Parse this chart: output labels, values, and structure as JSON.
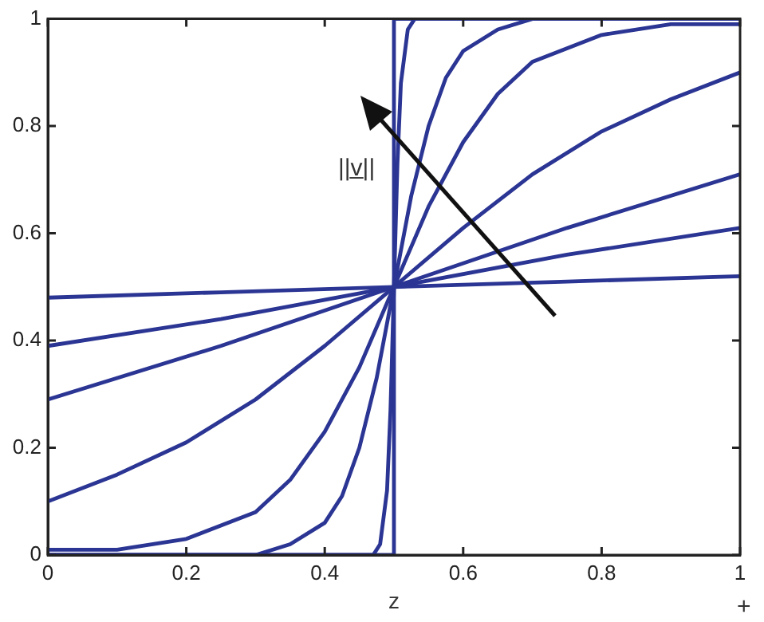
{
  "chart_data": {
    "type": "line",
    "xlabel": "z",
    "xlim": [
      0,
      1
    ],
    "xticks": [
      0,
      0.2,
      0.4,
      0.6,
      0.8,
      1
    ],
    "ylim": [
      0,
      1
    ],
    "yticks": [
      0,
      0.2,
      0.4,
      0.6,
      0.8,
      1
    ],
    "grid": false,
    "legend": false,
    "marker": "none",
    "line_style": "solid",
    "annotations": [
      "||v̲||",
      "+"
    ],
    "series": [
      {
        "color": "#2b3593",
        "x": [
          0,
          0.25,
          0.5,
          0.75,
          1
        ],
        "values": [
          0.48,
          0.49,
          0.5,
          0.51,
          0.52
        ]
      },
      {
        "color": "#2b3593",
        "x": [
          0,
          0.25,
          0.5,
          0.75,
          1
        ],
        "values": [
          0.39,
          0.44,
          0.5,
          0.56,
          0.61
        ]
      },
      {
        "color": "#2b3593",
        "x": [
          0,
          0.25,
          0.5,
          0.75,
          1
        ],
        "values": [
          0.29,
          0.39,
          0.5,
          0.61,
          0.71
        ]
      },
      {
        "color": "#2b3593",
        "x": [
          0,
          0.1,
          0.2,
          0.3,
          0.4,
          0.5,
          0.6,
          0.7,
          0.8,
          0.9,
          1
        ],
        "values": [
          0.1,
          0.15,
          0.21,
          0.29,
          0.39,
          0.5,
          0.61,
          0.71,
          0.79,
          0.85,
          0.9
        ]
      },
      {
        "color": "#2b3593",
        "x": [
          0,
          0.1,
          0.2,
          0.3,
          0.35,
          0.4,
          0.45,
          0.5,
          0.55,
          0.6,
          0.65,
          0.7,
          0.8,
          0.9,
          1
        ],
        "values": [
          0.01,
          0.01,
          0.03,
          0.08,
          0.14,
          0.23,
          0.35,
          0.5,
          0.65,
          0.77,
          0.86,
          0.92,
          0.97,
          0.99,
          0.99
        ]
      },
      {
        "color": "#2b3593",
        "x": [
          0,
          0.2,
          0.3,
          0.35,
          0.4,
          0.425,
          0.45,
          0.475,
          0.5,
          0.525,
          0.55,
          0.575,
          0.6,
          0.65,
          0.7,
          0.8,
          1
        ],
        "values": [
          0,
          0,
          0,
          0.02,
          0.06,
          0.11,
          0.2,
          0.33,
          0.5,
          0.67,
          0.8,
          0.89,
          0.94,
          0.98,
          1,
          1,
          1
        ]
      },
      {
        "color": "#2b3593",
        "x": [
          0,
          0.47,
          0.48,
          0.49,
          0.495,
          0.5,
          0.505,
          0.51,
          0.52,
          0.53,
          1
        ],
        "values": [
          0,
          0,
          0.02,
          0.12,
          0.27,
          0.5,
          0.73,
          0.88,
          0.98,
          1,
          1
        ]
      },
      {
        "color": "#2b3593",
        "x": [
          0,
          0.5,
          0.5,
          1
        ],
        "values": [
          0,
          0,
          1,
          1
        ]
      }
    ]
  }
}
